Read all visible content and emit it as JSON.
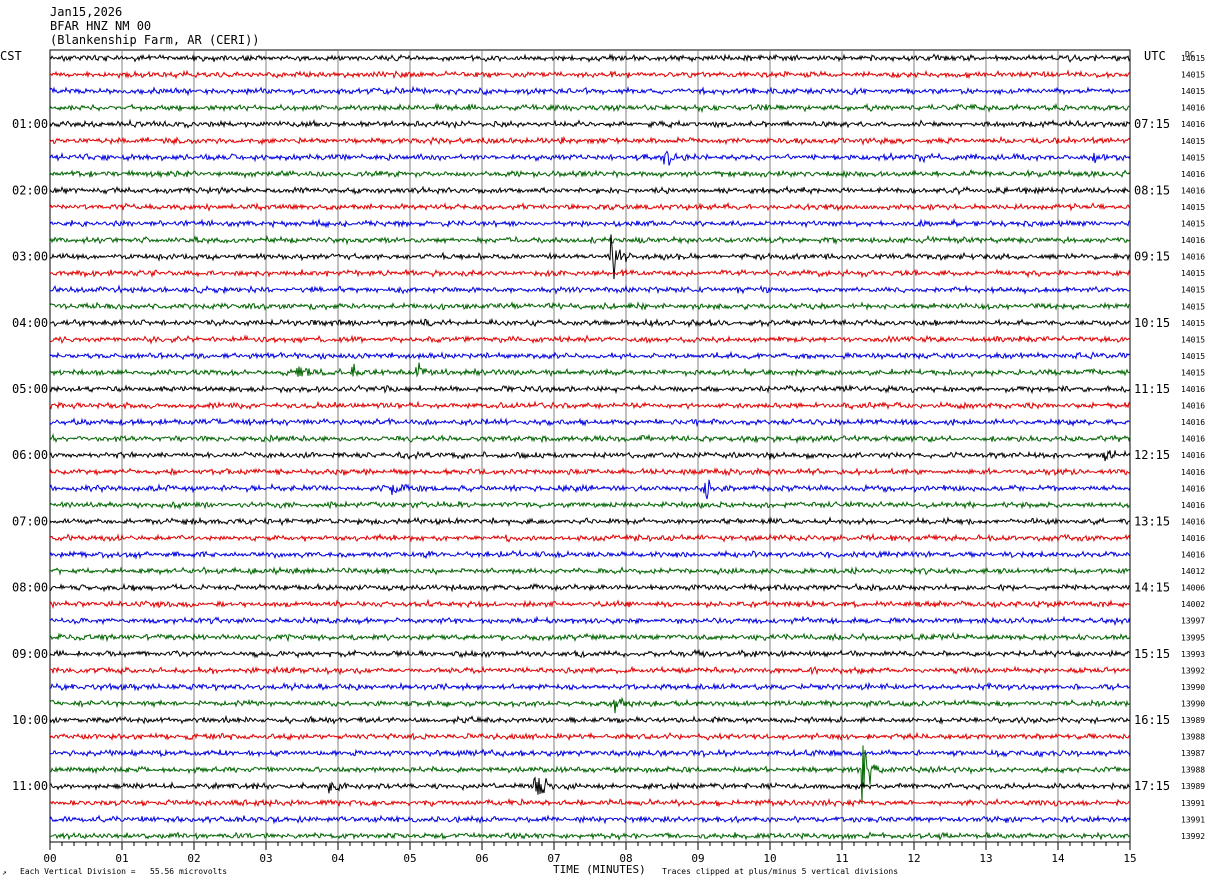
{
  "header": {
    "date": "Jan15,2026",
    "station": "BFAR HNZ NM 00",
    "location": "(Blankenship Farm, AR (CERI))"
  },
  "left_axis_label": "CST",
  "right_axis_label": "UTC",
  "dc_label": "DC",
  "footer": {
    "vertical_division": "Each Vertical Division =   55.56 microvolts",
    "clip_note": "Traces clipped at plus/minus 5 vertical divisions",
    "xlabel": "TIME (MINUTES)"
  },
  "colors": {
    "trace_cycle": [
      "#000000",
      "#e00000",
      "#0000e0",
      "#006400"
    ],
    "grid": "#808080"
  },
  "chart_data": {
    "type": "line",
    "title": "BFAR HNZ NM 00",
    "xlabel": "TIME (MINUTES)",
    "xlim": [
      0,
      15
    ],
    "x_tick_labels": [
      "00",
      "01",
      "02",
      "03",
      "04",
      "05",
      "06",
      "07",
      "08",
      "09",
      "10",
      "11",
      "12",
      "13",
      "14",
      "15"
    ],
    "left_time_labels": [
      "01:00",
      "02:00",
      "03:00",
      "04:00",
      "05:00",
      "06:00",
      "07:00",
      "08:00",
      "09:00",
      "10:00",
      "11:00"
    ],
    "right_time_labels": [
      "07:15",
      "08:15",
      "09:15",
      "10:15",
      "11:15",
      "12:15",
      "13:15",
      "14:15",
      "15:15",
      "16:15",
      "17:15"
    ],
    "dc_offsets": [
      14015,
      14015,
      14015,
      14016,
      14016,
      14015,
      14015,
      14016,
      14016,
      14015,
      14015,
      14016,
      14016,
      14015,
      14015,
      14015,
      14015,
      14015,
      14015,
      14015,
      14016,
      14016,
      14016,
      14016,
      14016,
      14016,
      14016,
      14016,
      14016,
      14016,
      14016,
      14012,
      14006,
      14002,
      13997,
      13995,
      13993,
      13992,
      13990,
      13990,
      13989,
      13988,
      13987,
      13988,
      13989,
      13991,
      13991,
      13992
    ],
    "events": [
      {
        "trace": 6,
        "minute": 8.55,
        "amplitude": 1.0
      },
      {
        "trace": 6,
        "minute": 12.05,
        "amplitude": 0.5
      },
      {
        "trace": 6,
        "minute": 14.5,
        "amplitude": 0.8
      },
      {
        "trace": 12,
        "minute": 7.8,
        "amplitude": 3.2
      },
      {
        "trace": 19,
        "minute": 3.45,
        "amplitude": 1.3
      },
      {
        "trace": 19,
        "minute": 4.2,
        "amplitude": 0.8
      },
      {
        "trace": 19,
        "minute": 5.1,
        "amplitude": 1.1
      },
      {
        "trace": 24,
        "minute": 10.0,
        "amplitude": 0.8
      },
      {
        "trace": 24,
        "minute": 14.65,
        "amplitude": 0.8
      },
      {
        "trace": 26,
        "minute": 4.75,
        "amplitude": 1.4
      },
      {
        "trace": 26,
        "minute": 9.1,
        "amplitude": 1.5
      },
      {
        "trace": 39,
        "minute": 7.85,
        "amplitude": 1.0
      },
      {
        "trace": 43,
        "minute": 11.3,
        "amplitude": 3.8
      },
      {
        "trace": 44,
        "minute": 6.75,
        "amplitude": 2.2
      },
      {
        "trace": 44,
        "minute": 3.9,
        "amplitude": 0.6
      }
    ]
  }
}
